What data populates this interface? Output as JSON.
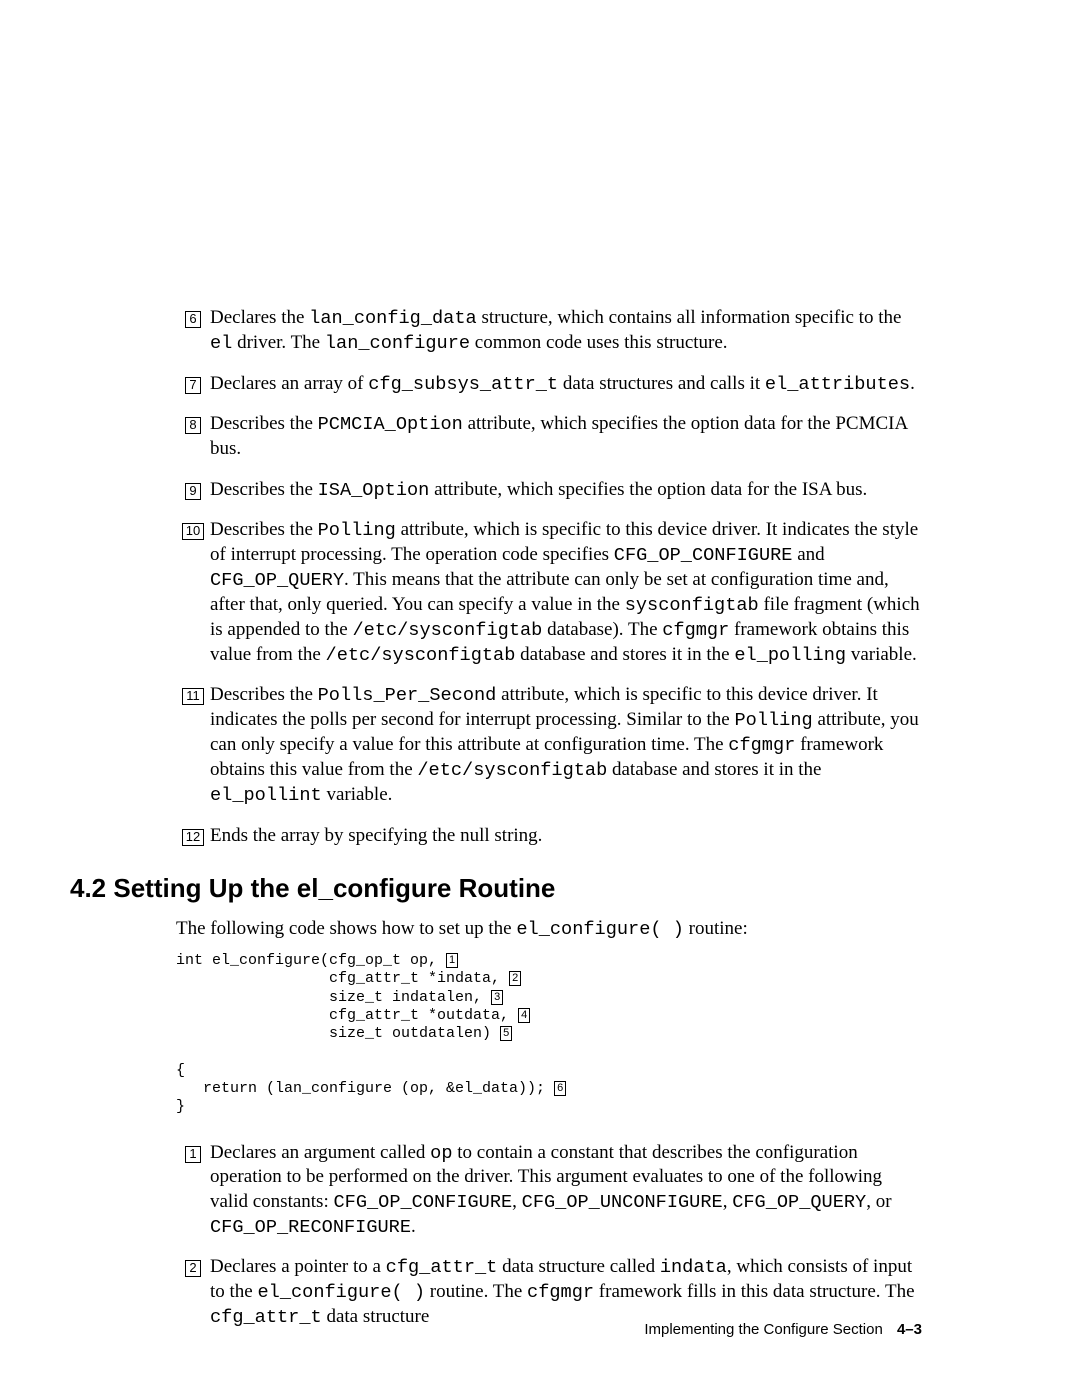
{
  "annotations_top": [
    {
      "n": "6",
      "html": "Declares the <code>lan_config_data</code> structure, which contains all information specific to the <code>el</code> driver. The <code>lan_configure</code> common code uses this structure."
    },
    {
      "n": "7",
      "html": "Declares an array of <code>cfg_subsys_attr_t</code> data structures and calls it <code>el_attributes</code>."
    },
    {
      "n": "8",
      "html": "Describes the <code>PCMCIA_Option</code> attribute, which specifies the option data for the PCMCIA bus."
    },
    {
      "n": "9",
      "html": "Describes the <code>ISA_Option</code> attribute, which specifies the option data for the ISA bus."
    },
    {
      "n": "10",
      "html": "Describes the <code>Polling</code> attribute, which is specific to this device driver. It indicates the style of interrupt processing. The operation code specifies <code>CFG_OP_CONFIGURE</code> and <code>CFG_OP_QUERY</code>. This means that the attribute can only be set at configuration time and, after that, only queried. You can specify a value in the <code>sysconfigtab</code> file fragment (which is appended to the <code>/etc/sysconfigtab</code> database). The <code>cfgmgr</code> framework obtains this value from the <code>/etc/sysconfigtab</code> database and stores it in the <code>el_polling</code> variable."
    },
    {
      "n": "11",
      "html": "Describes the <code>Polls_Per_Second</code> attribute, which is specific to this device driver. It indicates the polls per second for interrupt processing. Similar to the <code>Polling</code> attribute, you can only specify a value for this attribute at configuration time. The <code>cfgmgr</code> framework obtains this value from the <code>/etc/sysconfigtab</code> database and stores it in the <code>el_pollint</code> variable."
    },
    {
      "n": "12",
      "html": "Ends the array by specifying the null string."
    }
  ],
  "section_heading": "4.2 Setting Up the el_configure Routine",
  "section_intro_html": "The following code shows how to set up the <code>el_configure( )</code> routine:",
  "code_lines": [
    {
      "text": "int el_configure(cfg_op_t op, ",
      "box": "1"
    },
    {
      "text": "                 cfg_attr_t *indata, ",
      "box": "2"
    },
    {
      "text": "                 size_t indatalen, ",
      "box": "3"
    },
    {
      "text": "                 cfg_attr_t *outdata, ",
      "box": "4"
    },
    {
      "text": "                 size_t outdatalen) ",
      "box": "5"
    },
    {
      "text": ""
    },
    {
      "text": "{"
    },
    {
      "text": "   return (lan_configure (op, &el_data)); ",
      "box": "6"
    },
    {
      "text": "}"
    }
  ],
  "annotations_bottom": [
    {
      "n": "1",
      "html": "Declares an argument called <code>op</code> to contain a constant that describes the configuration operation to be performed on the driver. This argument evaluates to one of the following valid constants: <code>CFG_OP_CONFIGURE</code>, <code>CFG_OP_UNCONFIGURE</code>, <code>CFG_OP_QUERY</code>, or <code>CFG_OP_RECONFIGURE</code>."
    },
    {
      "n": "2",
      "html": "Declares a pointer to a <code>cfg_attr_t</code> data structure called <code>indata</code>, which consists of input to the <code>el_configure( )</code> routine. The <code>cfgmgr</code> framework fills in this data structure. The <code>cfg_attr_t</code> data structure"
    }
  ],
  "footer_title": "Implementing the Configure Section",
  "footer_page": "4–3"
}
